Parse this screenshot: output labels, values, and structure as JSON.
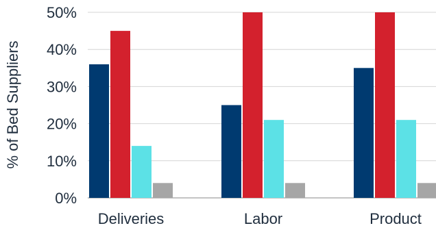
{
  "chart_data": {
    "type": "bar",
    "categories": [
      "Deliveries",
      "Labor",
      "Product"
    ],
    "series": [
      {
        "values": [
          36,
          25,
          35
        ],
        "color": "#003a70"
      },
      {
        "values": [
          45,
          50,
          50
        ],
        "color": "#d3212d"
      },
      {
        "values": [
          14,
          21,
          21
        ],
        "color": "#5ce1e6"
      },
      {
        "values": [
          4,
          4,
          4
        ],
        "color": "#a6a6a6"
      }
    ],
    "title": "",
    "xlabel": "",
    "ylabel": "% of Bed Suppliers",
    "ylim": [
      0,
      50
    ],
    "yticks": [
      0,
      10,
      20,
      30,
      40,
      50
    ],
    "ytick_format": "{v}%",
    "grid": true,
    "legend": "none"
  }
}
